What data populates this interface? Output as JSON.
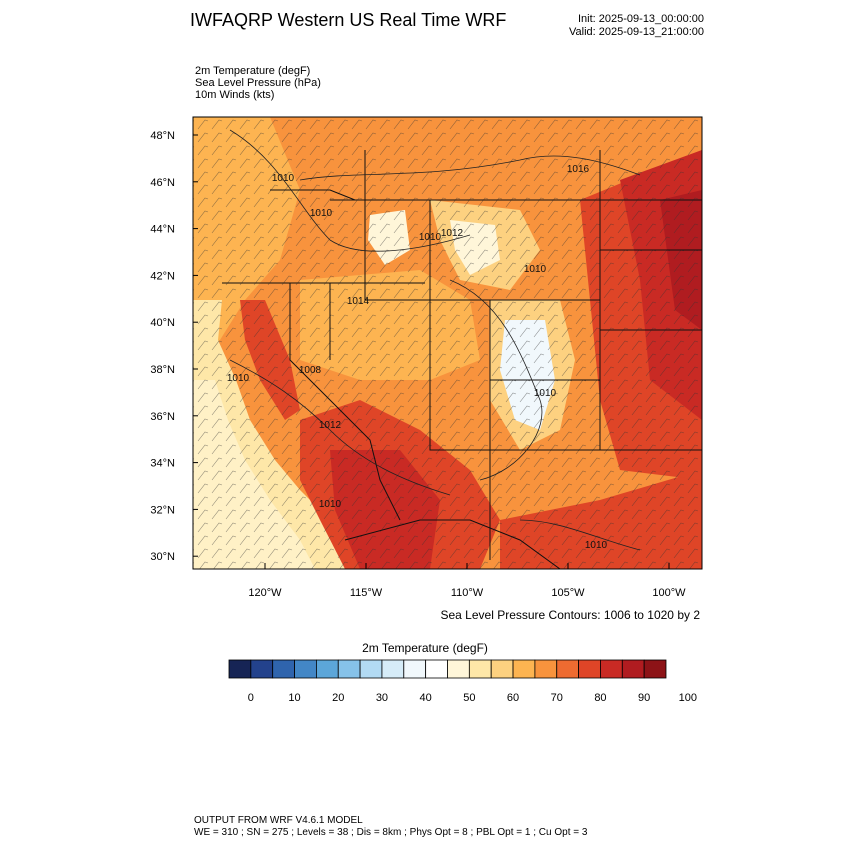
{
  "header": {
    "title": "IWFAQRP Western US Real Time WRF",
    "init": "Init: 2025-09-13_00:00:00",
    "valid": "Valid: 2025-09-13_21:00:00"
  },
  "fields": [
    "2m Temperature   (degF)",
    "Sea Level Pressure   (hPa)",
    "10m Winds   (kts)"
  ],
  "map": {
    "lat_labels": [
      "48°N",
      "46°N",
      "44°N",
      "42°N",
      "40°N",
      "38°N",
      "36°N",
      "34°N",
      "32°N",
      "30°N"
    ],
    "lon_labels": [
      "120°W",
      "115°W",
      "110°W",
      "105°W",
      "100°W"
    ],
    "isobar_labels": [
      "1010",
      "1010",
      "1012",
      "1014",
      "1012",
      "1010",
      "1010",
      "1016",
      "1010",
      "1010",
      "1010",
      "1008",
      "1010"
    ],
    "slp_caption": "Sea Level Pressure Contours: 1006 to 1020 by 2"
  },
  "colorbar": {
    "title": "2m Temperature  (degF)",
    "ticks": [
      "0",
      "10",
      "20",
      "30",
      "40",
      "50",
      "60",
      "70",
      "80",
      "90",
      "100"
    ],
    "colors": [
      "#162455",
      "#23428c",
      "#2f64ad",
      "#4387c6",
      "#5ca6d9",
      "#86c2e9",
      "#b2daf3",
      "#d6ecf8",
      "#f1f8fc",
      "#ffffff",
      "#fff6d9",
      "#fee7a8",
      "#fdd180",
      "#fdb451",
      "#f8933d",
      "#ee6b31",
      "#df4527",
      "#c92a24",
      "#b01c20",
      "#8d1317"
    ]
  },
  "footer": {
    "line1": "OUTPUT FROM WRF V4.6.1 MODEL",
    "line2": "WE = 310 ; SN = 275 ; Levels = 38 ; Dis = 8km ; Phys Opt = 8 ; PBL Opt = 1 ; Cu Opt = 3"
  }
}
